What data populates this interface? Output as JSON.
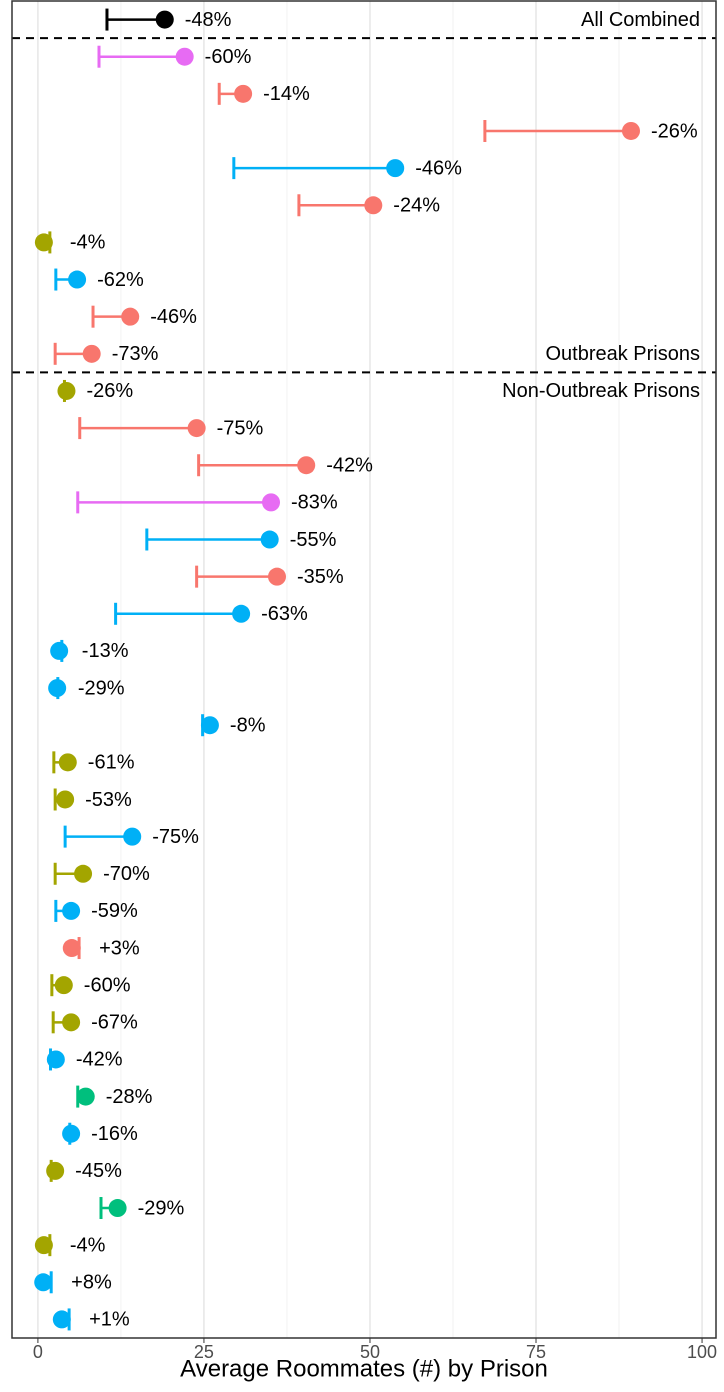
{
  "chart_data": {
    "type": "dumbbell",
    "xlabel": "Average Roommates (#) by Prison",
    "xlim": [
      -3.9,
      102.1
    ],
    "xticks": [
      0,
      25,
      50,
      75,
      100
    ],
    "xminor": [
      12.5,
      37.5,
      62.5,
      87.5
    ],
    "grid": true,
    "panels": [
      {
        "name": "All Combined",
        "before": [
          19.1
        ],
        "after": [
          10.4
        ],
        "colors": [
          "#000000"
        ],
        "change_labels": [
          "-48%"
        ]
      },
      {
        "name": "Outbreak Prisons",
        "before": [
          22.1,
          30.9,
          89.3,
          53.8,
          50.5,
          0.9,
          5.9,
          13.9,
          8.1
        ],
        "after": [
          9.2,
          27.3,
          67.3,
          29.5,
          39.3,
          1.8,
          2.7,
          8.3,
          2.6
        ],
        "colors": [
          "#e76bf3",
          "#f8766d",
          "#f8766d",
          "#00b0f6",
          "#f8766d",
          "#a3a500",
          "#00b0f6",
          "#f8766d",
          "#f8766d"
        ],
        "change_labels": [
          "-60%",
          "-14%",
          "-26%",
          "-46%",
          "-24%",
          "-4%",
          "-62%",
          "-46%",
          "-73%"
        ]
      },
      {
        "name": "Non-Outbreak Prisons",
        "before": [
          4.3,
          23.9,
          40.4,
          35.1,
          34.9,
          36.0,
          30.6,
          3.2,
          2.9,
          25.9,
          4.5,
          4.1,
          14.2,
          6.8,
          5.0,
          5.1,
          3.9,
          5.0,
          2.7,
          7.2,
          5.0,
          2.6,
          12.0,
          0.9,
          0.8,
          3.6
        ],
        "after": [
          4.0,
          6.3,
          24.2,
          6.0,
          16.4,
          23.9,
          11.7,
          3.6,
          3.0,
          24.8,
          2.4,
          2.6,
          4.1,
          2.6,
          2.7,
          6.2,
          2.1,
          2.3,
          1.9,
          6.0,
          4.8,
          2.0,
          9.5,
          1.8,
          2.0,
          4.7
        ],
        "colors": [
          "#a3a500",
          "#f8766d",
          "#f8766d",
          "#e76bf3",
          "#00b0f6",
          "#f8766d",
          "#00b0f6",
          "#00b0f6",
          "#00b0f6",
          "#00b0f6",
          "#a3a500",
          "#a3a500",
          "#00b0f6",
          "#a3a500",
          "#00b0f6",
          "#f8766d",
          "#a3a500",
          "#a3a500",
          "#00b0f6",
          "#00bf7d",
          "#00b0f6",
          "#a3a500",
          "#00bf7d",
          "#a3a500",
          "#00b0f6",
          "#00b0f6"
        ],
        "change_labels": [
          "-26%",
          "-75%",
          "-42%",
          "-83%",
          "-55%",
          "-35%",
          "-63%",
          "-13%",
          "-29%",
          "-8%",
          "-61%",
          "-53%",
          "-75%",
          "-70%",
          "-59%",
          "+3%",
          "-60%",
          "-67%",
          "-42%",
          "-28%",
          "-16%",
          "-45%",
          "-29%",
          "-4%",
          "+8%",
          "+1%"
        ]
      }
    ]
  }
}
